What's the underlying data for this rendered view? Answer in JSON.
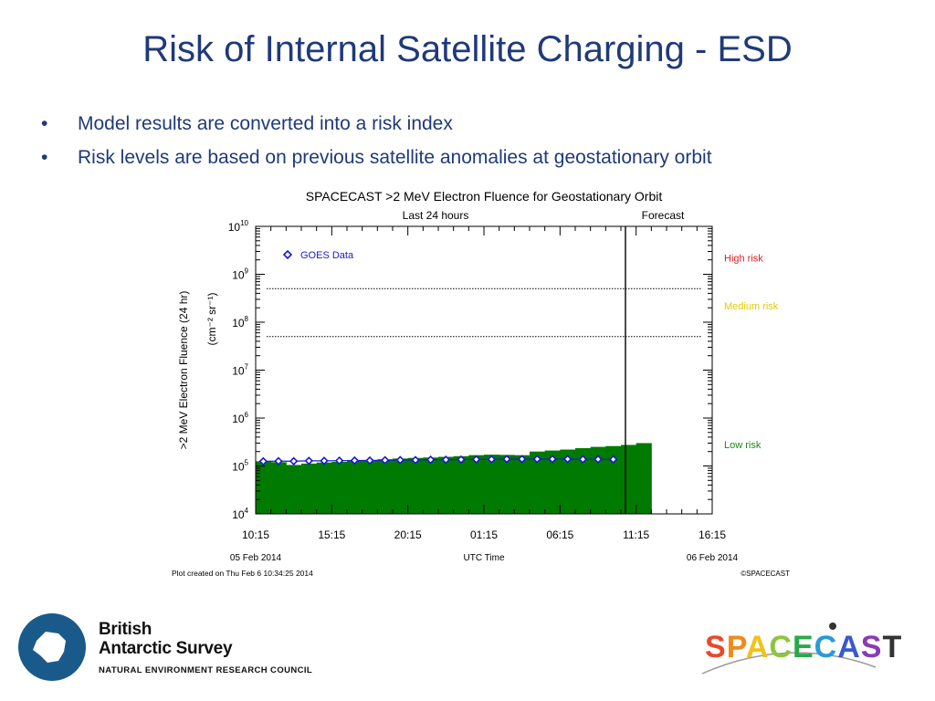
{
  "slide": {
    "title": "Risk of Internal Satellite Charging - ESD",
    "bullets": [
      "Model results are converted into a risk index",
      "Risk levels are based on previous satellite anomalies at geostationary orbit"
    ]
  },
  "chart_data": {
    "type": "bar",
    "title": "SPACECAST >2 MeV Electron Fluence for Geostationary Orbit",
    "subtitle_left": "Last 24 hours",
    "subtitle_right": "Forecast",
    "ylabel_line1": ">2 MeV Electron Fluence (24 hr)",
    "ylabel_line2": "(cm⁻² sr⁻¹)",
    "xlabel": "UTC Time",
    "y_scale": "log",
    "ylim": [
      10000,
      10000000000
    ],
    "y_ticks": [
      {
        "value": 10000,
        "base": "10",
        "exp": "4"
      },
      {
        "value": 100000,
        "base": "10",
        "exp": "5"
      },
      {
        "value": 1000000,
        "base": "10",
        "exp": "6"
      },
      {
        "value": 10000000,
        "base": "10",
        "exp": "7"
      },
      {
        "value": 100000000,
        "base": "10",
        "exp": "8"
      },
      {
        "value": 1000000000,
        "base": "10",
        "exp": "9"
      },
      {
        "value": 10000000000,
        "base": "10",
        "exp": "10"
      }
    ],
    "x_range_hours": [
      0,
      30
    ],
    "x_tick_labels": [
      "10:15",
      "15:15",
      "20:15",
      "01:15",
      "06:15",
      "11:15",
      "16:15"
    ],
    "x_tick_hours": [
      0,
      5,
      10,
      15,
      20,
      25,
      30
    ],
    "date_left": "05 Feb 2014",
    "date_right": "06 Feb 2014",
    "now_hours": 24.3,
    "thresholds": [
      {
        "name": "Medium risk",
        "value": 50000000,
        "color": "#e6c800"
      },
      {
        "name": "High risk",
        "value": 500000000,
        "color": "#e02020"
      }
    ],
    "risk_labels": [
      {
        "name": "High risk",
        "color": "#e02020",
        "at": 2200000000
      },
      {
        "name": "Medium risk",
        "color": "#e6c800",
        "at": 220000000
      },
      {
        "name": "Low risk",
        "color": "#1a8a1a",
        "at": 280000
      }
    ],
    "series": [
      {
        "name": "GOES Data",
        "kind": "points",
        "color": "#1a1ad0",
        "x": [
          0,
          1,
          2,
          3,
          4,
          5,
          6,
          7,
          8,
          9,
          10,
          11,
          12,
          13,
          14,
          15,
          16,
          17,
          18,
          19,
          20,
          21,
          22,
          23
        ],
        "y": [
          125000,
          126000,
          126000,
          128000,
          128000,
          129000,
          130000,
          130000,
          132000,
          133000,
          133000,
          135000,
          135000,
          136000,
          137000,
          138000,
          139000,
          139000,
          139000,
          139000,
          139000,
          138000,
          138000,
          137000
        ]
      },
      {
        "name": "fluence",
        "kind": "bars",
        "color": "#007a00",
        "x": [
          0,
          1,
          2,
          3,
          4,
          5,
          6,
          7,
          8,
          9,
          10,
          11,
          12,
          13,
          14,
          15,
          16,
          17,
          18,
          19,
          20,
          21,
          22,
          23,
          24,
          25
        ],
        "y": [
          125000,
          120000,
          105000,
          112000,
          118000,
          122000,
          128000,
          132000,
          138000,
          143000,
          147000,
          150000,
          155000,
          160000,
          168000,
          172000,
          170000,
          168000,
          200000,
          210000,
          220000,
          235000,
          250000,
          260000,
          275000,
          300000
        ]
      }
    ],
    "plot_created": "Plot created on Thu Feb  6 10:34:25 2014",
    "copyright": "©SPACECAST"
  },
  "logos": {
    "bas_line1": "British",
    "bas_line2": "Antarctic Survey",
    "bas_sub": "NATURAL ENVIRONMENT RESEARCH COUNCIL",
    "spacecast_letters": [
      "S",
      "P",
      "A",
      "C",
      "E",
      "C",
      "A",
      "S",
      "T"
    ],
    "spacecast_colors": [
      "#e84a2a",
      "#f08a1a",
      "#f2c21a",
      "#8cc63f",
      "#2aa84a",
      "#2a9ad8",
      "#3a5ac8",
      "#8a3ab8",
      "#333333"
    ]
  }
}
